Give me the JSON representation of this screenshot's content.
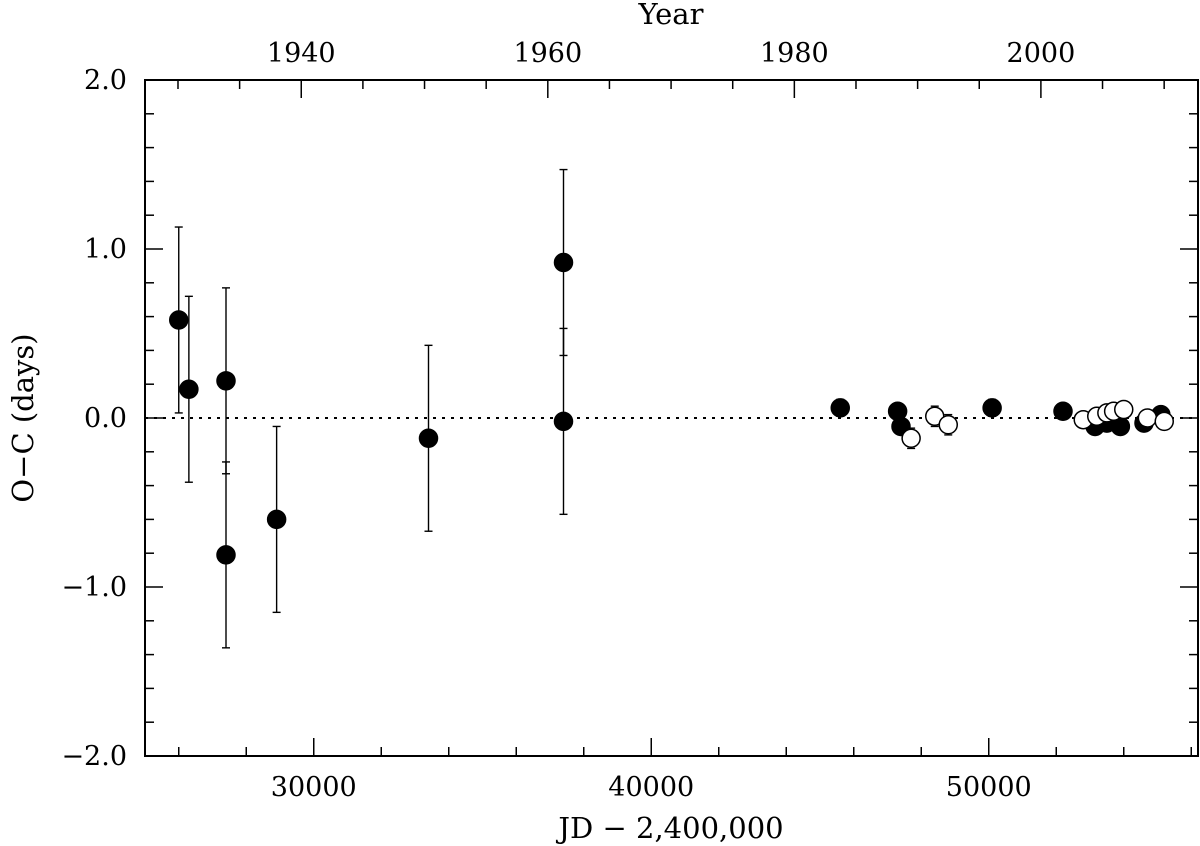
{
  "chart_data": {
    "type": "scatter",
    "title": "",
    "xlabel": "JD − 2,400,000",
    "ylabel": "O−C (days)",
    "top_xlabel": "Year",
    "xlim": [
      25000,
      56200
    ],
    "ylim": [
      -2.0,
      2.0
    ],
    "x_ticks": [
      30000,
      40000,
      50000
    ],
    "x_tick_labels": [
      "30000",
      "40000",
      "50000"
    ],
    "y_ticks": [
      -2.0,
      -1.0,
      0.0,
      1.0,
      2.0
    ],
    "y_tick_labels": [
      "−2.0",
      "−1.0",
      "0.0",
      "1.0",
      "2.0"
    ],
    "top_ticks": [
      1940,
      1960,
      1980,
      2000
    ],
    "top_tick_labels": [
      "1940",
      "1960",
      "1980",
      "2000"
    ],
    "reference_line": {
      "y": 0.0,
      "style": "dotted"
    },
    "grid": false,
    "legend": "none",
    "series": [
      {
        "marker": "filled-circle",
        "color": "#000000",
        "points": [
          {
            "x": 26000,
            "y": 0.58,
            "err": 0.55
          },
          {
            "x": 26300,
            "y": 0.17,
            "err": 0.55
          },
          {
            "x": 27400,
            "y": 0.22,
            "err": 0.55
          },
          {
            "x": 27400,
            "y": -0.81,
            "err": 0.55
          },
          {
            "x": 28900,
            "y": -0.6,
            "err": 0.55
          },
          {
            "x": 33400,
            "y": -0.12,
            "err": 0.55
          },
          {
            "x": 37400,
            "y": 0.92,
            "err": 0.55
          },
          {
            "x": 37400,
            "y": -0.02,
            "err": 0.55
          },
          {
            "x": 45600,
            "y": 0.06,
            "err": 0.05
          },
          {
            "x": 47300,
            "y": 0.04,
            "err": 0.04
          },
          {
            "x": 47400,
            "y": -0.05,
            "err": 0.03
          },
          {
            "x": 50100,
            "y": 0.06,
            "err": 0.05
          },
          {
            "x": 52200,
            "y": 0.04,
            "err": 0.03
          },
          {
            "x": 53150,
            "y": -0.05,
            "err": 0.02
          },
          {
            "x": 53500,
            "y": -0.03,
            "err": 0.02
          },
          {
            "x": 53900,
            "y": -0.05,
            "err": 0.02
          },
          {
            "x": 54600,
            "y": -0.03,
            "err": 0.02
          },
          {
            "x": 55100,
            "y": 0.02,
            "err": 0.02
          }
        ]
      },
      {
        "marker": "open-circle",
        "color": "#000000",
        "points": [
          {
            "x": 47700,
            "y": -0.12,
            "err": 0.06
          },
          {
            "x": 48400,
            "y": 0.01,
            "err": 0.06
          },
          {
            "x": 48800,
            "y": -0.04,
            "err": 0.06
          },
          {
            "x": 52800,
            "y": -0.01,
            "err": 0.02
          },
          {
            "x": 53200,
            "y": 0.01,
            "err": 0.02
          },
          {
            "x": 53500,
            "y": 0.03,
            "err": 0.02
          },
          {
            "x": 53700,
            "y": 0.04,
            "err": 0.02
          },
          {
            "x": 54000,
            "y": 0.05,
            "err": 0.02
          },
          {
            "x": 54700,
            "y": 0.0,
            "err": 0.02
          },
          {
            "x": 55200,
            "y": -0.02,
            "err": 0.02
          }
        ]
      }
    ]
  }
}
